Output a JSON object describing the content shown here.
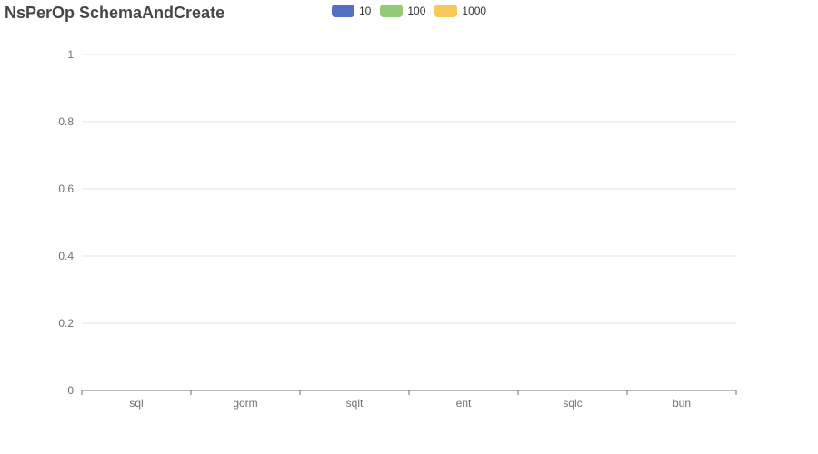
{
  "chart_data": {
    "type": "bar",
    "title": "NsPerOp SchemaAndCreate",
    "xlabel": "",
    "ylabel": "",
    "categories": [
      "sql",
      "gorm",
      "sqlt",
      "ent",
      "sqlc",
      "bun"
    ],
    "series": [
      {
        "name": "10",
        "color": "#5470c6",
        "values": [
          null,
          null,
          null,
          null,
          null,
          null
        ]
      },
      {
        "name": "100",
        "color": "#91cc75",
        "values": [
          null,
          null,
          null,
          null,
          null,
          null
        ]
      },
      {
        "name": "1000",
        "color": "#fac858",
        "values": [
          null,
          null,
          null,
          null,
          null,
          null
        ]
      }
    ],
    "ylim": [
      0,
      1
    ],
    "yticks": [
      "0",
      "0.2",
      "0.4",
      "0.6",
      "0.8",
      "1"
    ],
    "grid": true,
    "legend_position": "top"
  }
}
